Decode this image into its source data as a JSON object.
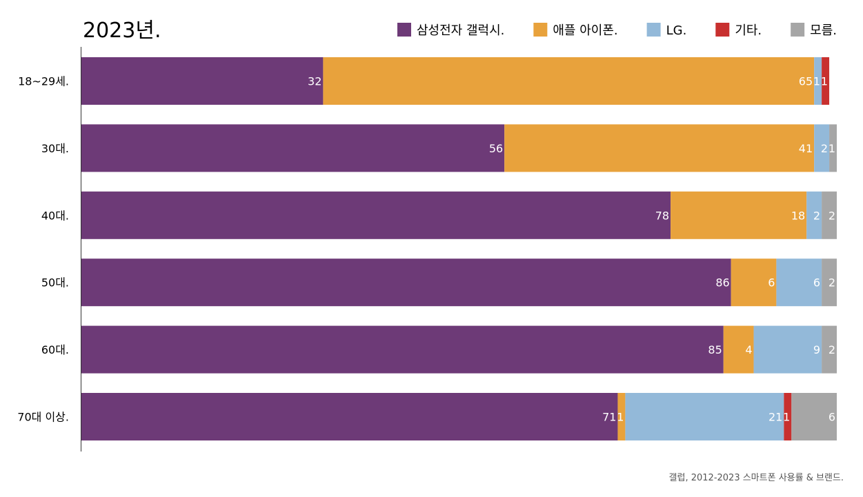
{
  "chart_data": {
    "type": "bar",
    "orientation": "horizontal",
    "stacked": true,
    "title": "2023년.",
    "categories": [
      "18~29세.",
      "30대.",
      "40대.",
      "50대.",
      "60대.",
      "70대 이상."
    ],
    "series": [
      {
        "name": "삼성전자 갤럭시.",
        "color": "#6d3a77",
        "values": [
          32,
          56,
          78,
          86,
          85,
          71
        ]
      },
      {
        "name": "애플 아이폰.",
        "color": "#e8a23c",
        "values": [
          65,
          41,
          18,
          6,
          4,
          1
        ]
      },
      {
        "name": "LG.",
        "color": "#93b9d9",
        "values": [
          1,
          2,
          2,
          6,
          9,
          21
        ]
      },
      {
        "name": "기타.",
        "color": "#c8302f",
        "values": [
          1,
          0,
          0,
          0,
          0,
          1
        ]
      },
      {
        "name": "모름.",
        "color": "#a6a6a6",
        "values": [
          0,
          1,
          2,
          2,
          2,
          6
        ]
      }
    ],
    "xlim": [
      0,
      100
    ],
    "legend_position": "top-right",
    "grid": false,
    "source": "갤럽, 2012-2023 스마트폰 사용률 & 브랜드."
  }
}
